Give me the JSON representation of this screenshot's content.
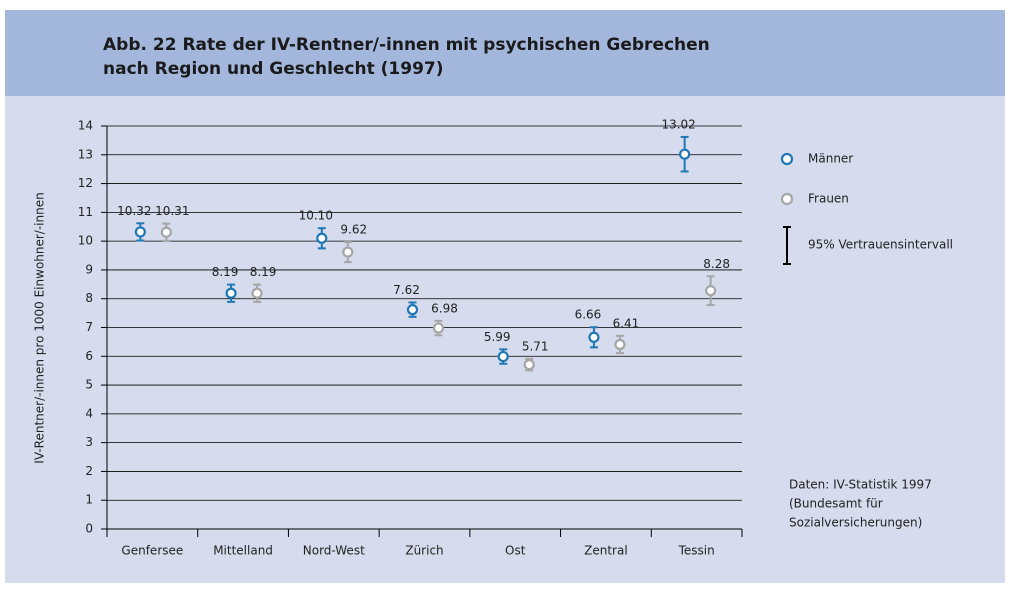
{
  "chart_data": {
    "type": "dot-errorbar",
    "title": [
      "Abb. 22  Rate der IV-Rentner/-innen mit psychischen Gebrechen",
      "nach Region und Geschlecht (1997)"
    ],
    "y_label": "IV-Rentner/-innen pro 1000 Einwohner/-innen",
    "categories": [
      "Genfersee",
      "Mittelland",
      "Nord-West",
      "Zürich",
      "Ost",
      "Zentral",
      "Tessin"
    ],
    "series": [
      {
        "name": "Männer",
        "color": "#1f78b4",
        "values": [
          10.32,
          8.19,
          10.1,
          7.62,
          5.99,
          6.66,
          13.02
        ],
        "value_labels": [
          "10.32",
          "8.19",
          "10.10",
          "7.62",
          "5.99",
          "6.66",
          "13.02"
        ],
        "errors": [
          0.3,
          0.3,
          0.35,
          0.25,
          0.25,
          0.35,
          0.6
        ]
      },
      {
        "name": "Frauen",
        "color": "#a6a6a6",
        "values": [
          10.31,
          8.19,
          9.62,
          6.98,
          5.71,
          6.41,
          8.28
        ],
        "value_labels": [
          "10.31",
          "8.19",
          "9.62",
          "6.98",
          "5.71",
          "6.41",
          "8.28"
        ],
        "errors": [
          0.3,
          0.3,
          0.35,
          0.25,
          0.2,
          0.3,
          0.5
        ]
      }
    ],
    "ci_label": "95% Vertrauensintervall",
    "source": [
      "Daten:  IV-Statistik 1997",
      "(Bundesamt für",
      "Sozialversicherungen)"
    ],
    "ylim": [
      0,
      14
    ],
    "yticks": [
      0,
      1,
      2,
      3,
      4,
      5,
      6,
      7,
      8,
      9,
      10,
      11,
      12,
      13,
      14
    ],
    "grid": true
  }
}
